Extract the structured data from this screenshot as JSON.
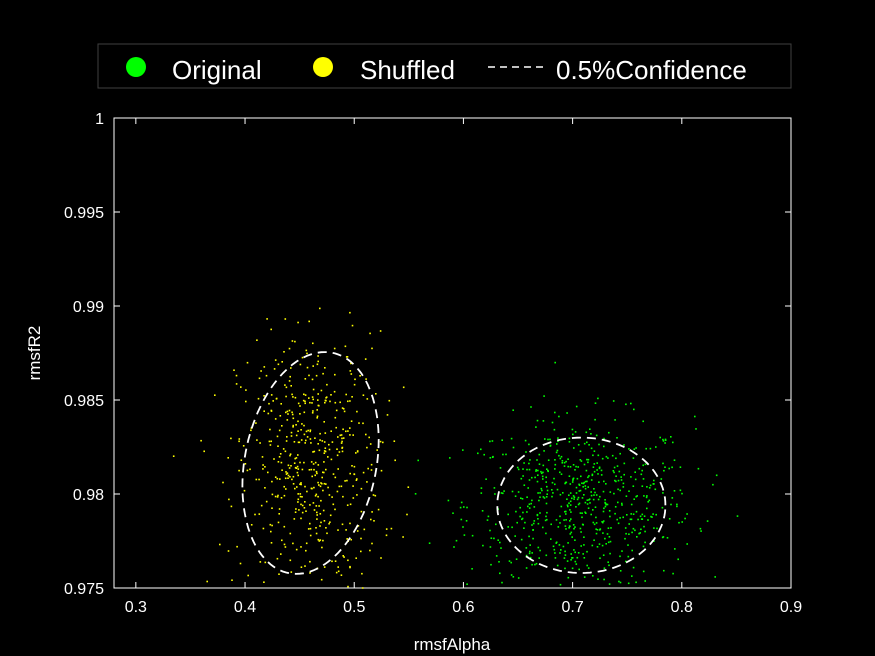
{
  "chart_data": {
    "type": "scatter",
    "xlabel": "rmsfAlpha",
    "ylabel": "rmsfR2",
    "xlim": [
      0.28,
      0.9
    ],
    "ylim": [
      0.975,
      1.0
    ],
    "xticks": [
      "0.3",
      "0.4",
      "0.5",
      "0.6",
      "0.7",
      "0.8",
      "0.9"
    ],
    "yticks": [
      "0.975",
      "0.98",
      "0.985",
      "0.99",
      "0.995",
      "1"
    ],
    "grid": false,
    "legend_position": "top",
    "legend": {
      "original": "Original",
      "shuffled": "Shuffled",
      "confidence": "0.5%Confidence"
    },
    "series": [
      {
        "name": "Original",
        "color": "#00ff00",
        "center": [
          0.706,
          0.9795
        ],
        "spread": [
          0.052,
          0.0023
        ],
        "count": 650,
        "range_x": [
          0.53,
          0.86
        ],
        "range_y": [
          0.975,
          0.9875
        ]
      },
      {
        "name": "Shuffled",
        "color": "#ffff00",
        "center": [
          0.458,
          0.9815
        ],
        "spread": [
          0.033,
          0.0035
        ],
        "count": 520,
        "range_x": [
          0.31,
          0.56
        ],
        "range_y": [
          0.975,
          0.998
        ]
      }
    ],
    "confidence_ellipses": [
      {
        "series": "Shuffled",
        "center": [
          0.46,
          0.98165
        ],
        "semi_x": 0.061,
        "semi_y": 0.0059,
        "tilt_data": [
          0.013,
          0.0059
        ]
      },
      {
        "series": "Original",
        "center": [
          0.708,
          0.9794
        ],
        "semi_x": 0.077,
        "semi_y": 0.0036,
        "tilt_data": [
          0.0,
          0.0036
        ]
      }
    ]
  }
}
